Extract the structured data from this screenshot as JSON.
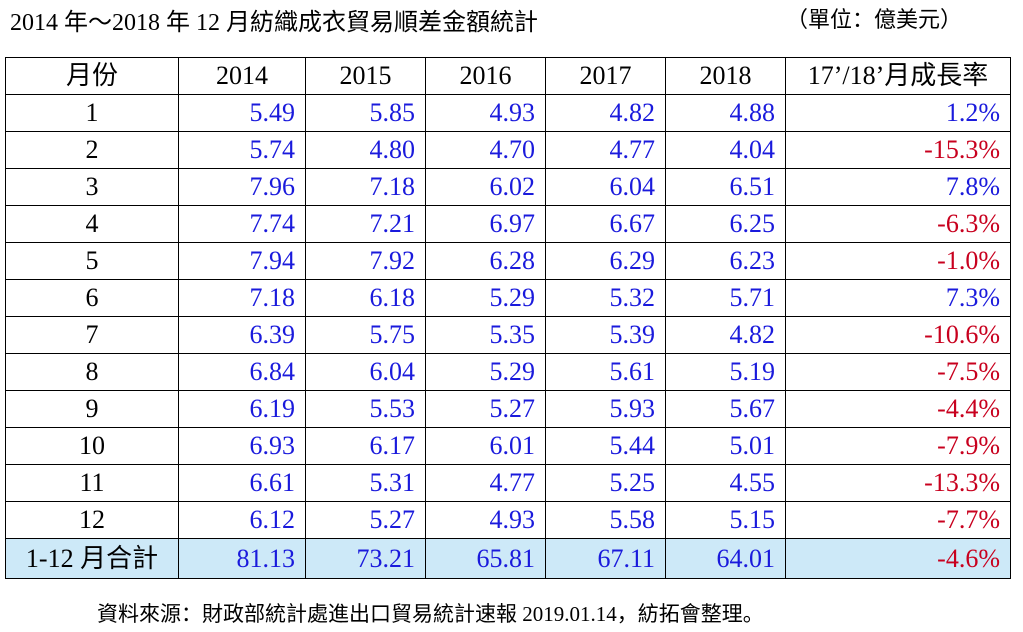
{
  "header": {
    "title": "2014 年～2018 年 12 月紡織成衣貿易順差金額統計",
    "unit": "（單位：億美元）"
  },
  "table": {
    "columns": [
      "月份",
      "2014",
      "2015",
      "2016",
      "2017",
      "2018",
      "17’/18’月成長率"
    ],
    "rows": [
      [
        "1",
        "5.49",
        "5.85",
        "4.93",
        "4.82",
        "4.88",
        "1.2%"
      ],
      [
        "2",
        "5.74",
        "4.80",
        "4.70",
        "4.77",
        "4.04",
        "-15.3%"
      ],
      [
        "3",
        "7.96",
        "7.18",
        "6.02",
        "6.04",
        "6.51",
        "7.8%"
      ],
      [
        "4",
        "7.74",
        "7.21",
        "6.97",
        "6.67",
        "6.25",
        "-6.3%"
      ],
      [
        "5",
        "7.94",
        "7.92",
        "6.28",
        "6.29",
        "6.23",
        "-1.0%"
      ],
      [
        "6",
        "7.18",
        "6.18",
        "5.29",
        "5.32",
        "5.71",
        "7.3%"
      ],
      [
        "7",
        "6.39",
        "5.75",
        "5.35",
        "5.39",
        "4.82",
        "-10.6%"
      ],
      [
        "8",
        "6.84",
        "6.04",
        "5.29",
        "5.61",
        "5.19",
        "-7.5%"
      ],
      [
        "9",
        "6.19",
        "5.53",
        "5.27",
        "5.93",
        "5.67",
        "-4.4%"
      ],
      [
        "10",
        "6.93",
        "6.17",
        "6.01",
        "5.44",
        "5.01",
        "-7.9%"
      ],
      [
        "11",
        "6.61",
        "5.31",
        "4.77",
        "5.25",
        "4.55",
        "-13.3%"
      ],
      [
        "12",
        "6.12",
        "5.27",
        "4.93",
        "5.58",
        "5.15",
        "-7.7%"
      ]
    ],
    "total": [
      "1-12 月合計",
      "81.13",
      "73.21",
      "65.81",
      "67.11",
      "64.01",
      "-4.6%"
    ]
  },
  "source": "資料來源：財政部統計處進出口貿易統計速報 2019.01.14，紡拓會整理。"
}
